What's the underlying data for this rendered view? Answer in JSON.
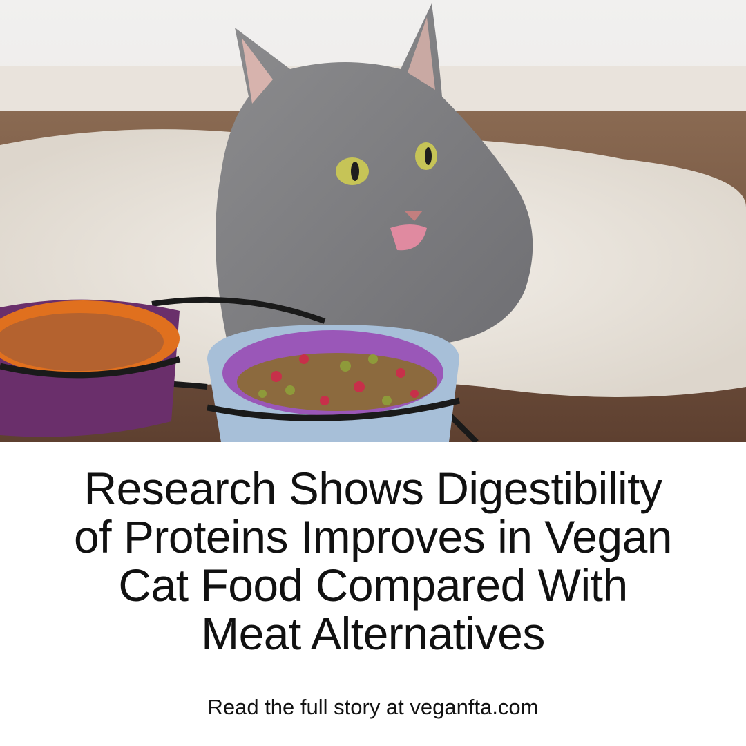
{
  "post": {
    "headline": [
      "Research Shows Digestibility",
      "of Proteins Improves in Vegan",
      "Cat Food Compared With",
      "Meat Alternatives"
    ],
    "footer": "Read the full story at veganfta.com"
  }
}
